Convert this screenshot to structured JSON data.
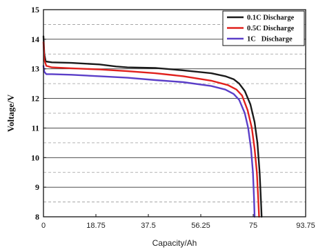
{
  "chart_data": {
    "type": "line",
    "xlabel": "Capacity/Ah",
    "ylabel": "Voltage/V",
    "xlim": [
      0,
      93.75
    ],
    "ylim": [
      8,
      15
    ],
    "x_ticks": [
      "0",
      "18.75",
      "37.5",
      "56.25",
      "75",
      "93.75"
    ],
    "y_ticks": [
      "8",
      "9",
      "10",
      "11",
      "12",
      "13",
      "14",
      "15"
    ],
    "grid": {
      "major_y": "solid",
      "minor_y": "dashed"
    },
    "legend_position": "top-right",
    "series": [
      {
        "name": "0.1C Discharge",
        "color": "#1a1a1a",
        "points": [
          [
            0,
            14.1
          ],
          [
            0.3,
            13.5
          ],
          [
            0.8,
            13.25
          ],
          [
            3,
            13.22
          ],
          [
            10,
            13.2
          ],
          [
            20,
            13.15
          ],
          [
            26,
            13.08
          ],
          [
            30,
            13.05
          ],
          [
            40,
            13.03
          ],
          [
            50,
            12.95
          ],
          [
            60,
            12.85
          ],
          [
            65,
            12.75
          ],
          [
            68,
            12.65
          ],
          [
            70,
            12.5
          ],
          [
            72,
            12.25
          ],
          [
            74,
            11.8
          ],
          [
            75.5,
            11.2
          ],
          [
            76.5,
            10.5
          ],
          [
            77.3,
            9.5
          ],
          [
            77.8,
            8.5
          ],
          [
            78,
            8
          ]
        ]
      },
      {
        "name": "0.5C Discharge",
        "color": "#e0201c",
        "points": [
          [
            0,
            13.9
          ],
          [
            0.3,
            13.3
          ],
          [
            1,
            13.1
          ],
          [
            3,
            13.05
          ],
          [
            10,
            13.02
          ],
          [
            20,
            12.98
          ],
          [
            30,
            12.92
          ],
          [
            40,
            12.85
          ],
          [
            50,
            12.75
          ],
          [
            60,
            12.6
          ],
          [
            66,
            12.45
          ],
          [
            69,
            12.3
          ],
          [
            71,
            12.1
          ],
          [
            73,
            11.6
          ],
          [
            74.5,
            11.0
          ],
          [
            75.5,
            10.3
          ],
          [
            76.3,
            9.5
          ],
          [
            76.8,
            8.6
          ],
          [
            77.1,
            8
          ]
        ]
      },
      {
        "name": "1C   Discharge",
        "color": "#5a3ec8",
        "points": [
          [
            0,
            13.1
          ],
          [
            0.3,
            12.9
          ],
          [
            1,
            12.82
          ],
          [
            3,
            12.82
          ],
          [
            10,
            12.8
          ],
          [
            20,
            12.75
          ],
          [
            30,
            12.7
          ],
          [
            40,
            12.62
          ],
          [
            50,
            12.55
          ],
          [
            60,
            12.42
          ],
          [
            65,
            12.3
          ],
          [
            68,
            12.15
          ],
          [
            70,
            11.95
          ],
          [
            72,
            11.5
          ],
          [
            73.2,
            11.0
          ],
          [
            74.2,
            10.3
          ],
          [
            74.9,
            9.5
          ],
          [
            75.3,
            8.6
          ],
          [
            75.5,
            8
          ]
        ]
      }
    ]
  }
}
